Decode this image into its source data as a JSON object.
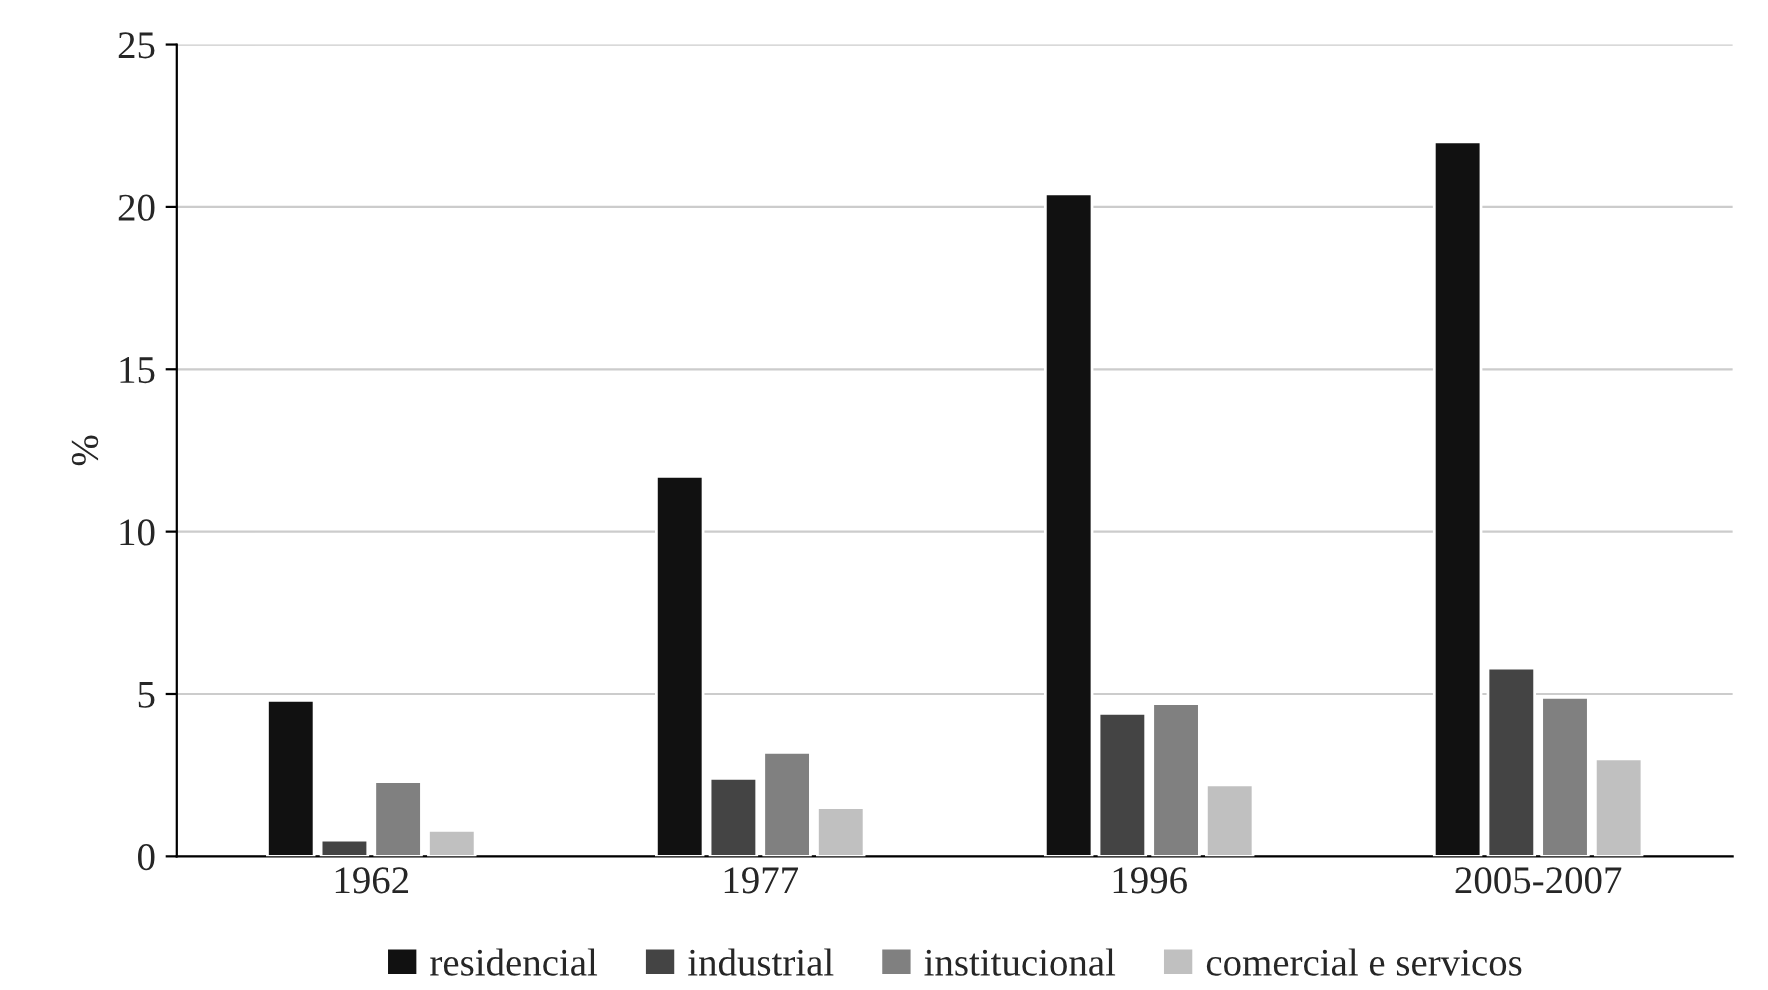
{
  "chart_data": {
    "type": "bar",
    "ylabel": "%",
    "categories": [
      "1962",
      "1977",
      "1996",
      "2005-2007"
    ],
    "series": [
      {
        "name": "residencial",
        "color": "#111111",
        "values": [
          4.8,
          11.7,
          20.4,
          22.0
        ]
      },
      {
        "name": "industrial",
        "color": "#444444",
        "values": [
          0.5,
          2.4,
          4.4,
          5.8
        ]
      },
      {
        "name": "institucional",
        "color": "#808080",
        "values": [
          2.3,
          3.2,
          4.7,
          4.9
        ]
      },
      {
        "name": "comercial e servicos",
        "color": "#c0c0c0",
        "values": [
          0.8,
          1.5,
          2.2,
          3.0
        ]
      }
    ],
    "ylim": [
      0,
      25
    ],
    "yticks": [
      0,
      5,
      10,
      15,
      20,
      25
    ],
    "grid": "y",
    "legend": "bottom"
  }
}
